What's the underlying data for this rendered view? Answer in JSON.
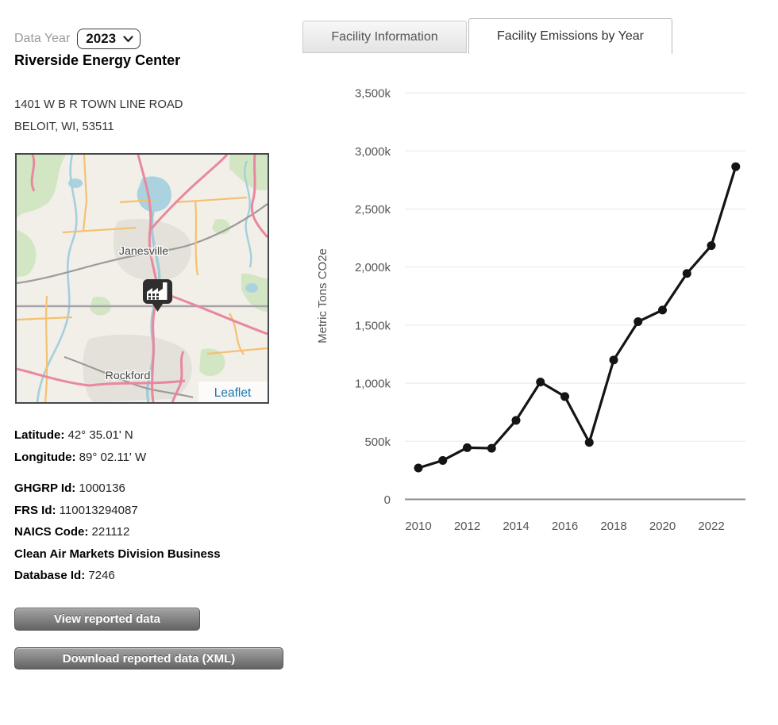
{
  "header": {
    "data_year_label": "Data Year",
    "data_year_selected": "2023"
  },
  "facility": {
    "name": "Riverside Energy Center",
    "address_line1": "1401 W B R TOWN LINE ROAD",
    "address_line2": "BELOIT, WI, 53511",
    "latitude_label": "Latitude:",
    "latitude_value": "42° 35.01' N",
    "longitude_label": "Longitude:",
    "longitude_value": "89° 02.11' W",
    "ghgrp_id_label": "GHGRP Id:",
    "ghgrp_id_value": "1000136",
    "frs_id_label": "FRS Id:",
    "frs_id_value": "110013294087",
    "naics_label": "NAICS Code:",
    "naics_value": "221112",
    "camd_label": "Clean Air Markets Division Business Database Id:",
    "camd_value": "7246"
  },
  "map": {
    "city_labels": [
      "Janesville",
      "Rockford"
    ],
    "attribution": "Leaflet",
    "marker": "factory-icon"
  },
  "actions": {
    "view_reported": "View reported data",
    "download_reported": "Download reported data (XML)"
  },
  "tabs": [
    {
      "label": "Facility Information",
      "active": false
    },
    {
      "label": "Facility Emissions by Year",
      "active": true
    }
  ],
  "chart_data": {
    "type": "line",
    "title": "",
    "xlabel": "",
    "ylabel": "Metric Tons CO2e",
    "x": [
      2010,
      2011,
      2012,
      2013,
      2014,
      2015,
      2016,
      2017,
      2018,
      2019,
      2020,
      2021,
      2022,
      2023
    ],
    "values": [
      270000,
      335000,
      445000,
      440000,
      680000,
      1010000,
      885000,
      490000,
      1200000,
      1530000,
      1630000,
      1945000,
      2185000,
      2865000
    ],
    "ylim": [
      0,
      3500000
    ],
    "ytick_interval": 500000,
    "ytick_labels": [
      "0",
      "500k",
      "1,000k",
      "1,500k",
      "2,000k",
      "2,500k",
      "3,000k",
      "3,500k"
    ],
    "xtick_labels": [
      "2010",
      "2012",
      "2014",
      "2016",
      "2018",
      "2020",
      "2022"
    ],
    "line_color": "#141414",
    "grid": true,
    "legend_position": "none"
  },
  "theme": {
    "leaflet_blue": "#1a78b4",
    "axis_text": "#555555",
    "button_face": "#7d7d7d",
    "tab_inactive_text": "#555555"
  }
}
